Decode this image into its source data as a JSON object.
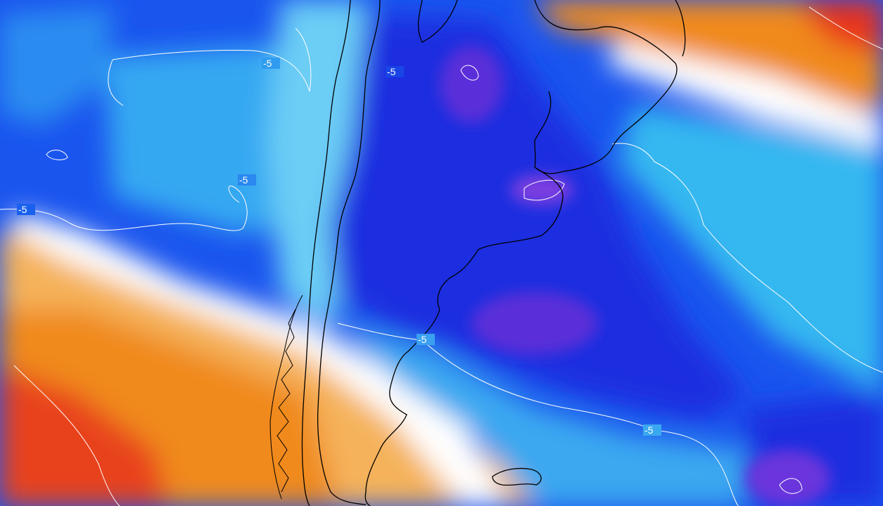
{
  "map": {
    "contour_value_labels": [
      "-5",
      "-5",
      "-5",
      "-5",
      "-5",
      "-5"
    ],
    "colors": {
      "deep_warm": "#e8331a",
      "warm": "#f08a1c",
      "light_warm": "#f5b25a",
      "pale_warm": "#f9dcb2",
      "neutral": "#ffffff",
      "pale_cold": "#9fe4f7",
      "cold_light": "#35b8f0",
      "cold": "#1a6ef0",
      "cold_deep": "#1a2ee0",
      "cold_deepest": "#4a26d6",
      "extreme_cold": "#8a46e0",
      "contour_line": "#ffffff",
      "coastline": "#000000"
    }
  }
}
